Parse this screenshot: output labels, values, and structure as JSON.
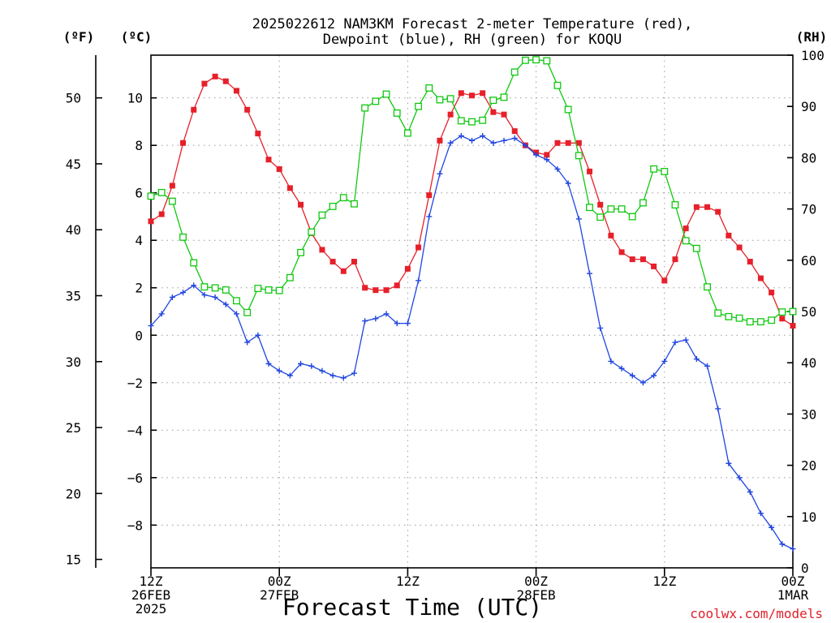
{
  "title_line1": "2025022612 NAM3KM Forecast 2-meter Temperature (red),",
  "title_line2": "Dewpoint (blue), RH (green) for KOQU",
  "unit_f": "(ºF)",
  "unit_c": "(ºC)",
  "unit_rh": "(RH)",
  "x_axis_label": "Forecast Time (UTC)",
  "credit": "coolwx.com/models",
  "x_ticks": [
    {
      "hour": 0,
      "lines": [
        "12Z",
        "26FEB",
        "2025"
      ]
    },
    {
      "hour": 12,
      "lines": [
        "00Z",
        "27FEB"
      ]
    },
    {
      "hour": 24,
      "lines": [
        "12Z"
      ]
    },
    {
      "hour": 36,
      "lines": [
        "00Z",
        "28FEB"
      ]
    },
    {
      "hour": 48,
      "lines": [
        "12Z"
      ]
    },
    {
      "hour": 60,
      "lines": [
        "00Z",
        "1MAR"
      ]
    }
  ],
  "chart_data": {
    "type": "line",
    "x_unit": "forecast hour from 2025-02-26 12Z",
    "xlim": [
      0,
      60
    ],
    "y_left_c_lim": [
      -9.8,
      11.8
    ],
    "y_left_c_ticks": [
      -8,
      -6,
      -4,
      -2,
      0,
      2,
      4,
      6,
      8,
      10
    ],
    "y_left_f_ticks": [
      15,
      20,
      25,
      30,
      35,
      40,
      45,
      50
    ],
    "y_right_rh_lim": [
      0,
      100
    ],
    "y_right_rh_ticks": [
      0,
      10,
      20,
      30,
      40,
      50,
      60,
      70,
      80,
      90,
      100
    ],
    "grid": true,
    "x": [
      0,
      1,
      2,
      3,
      4,
      5,
      6,
      7,
      8,
      9,
      10,
      11,
      12,
      13,
      14,
      15,
      16,
      17,
      18,
      19,
      20,
      21,
      22,
      23,
      24,
      25,
      26,
      27,
      28,
      29,
      30,
      31,
      32,
      33,
      34,
      35,
      36,
      37,
      38,
      39,
      40,
      41,
      42,
      43,
      44,
      45,
      46,
      47,
      48,
      49,
      50,
      51,
      52,
      53,
      54,
      55,
      56,
      57,
      58,
      59,
      60
    ],
    "series": [
      {
        "name": "Temperature",
        "axis": "C",
        "color": "#e6202a",
        "marker": "filled-square",
        "values": [
          4.8,
          5.1,
          6.3,
          8.1,
          9.5,
          10.6,
          10.9,
          10.7,
          10.3,
          9.5,
          8.5,
          7.4,
          7.0,
          6.2,
          5.5,
          4.3,
          3.6,
          3.1,
          2.7,
          3.1,
          2.0,
          1.9,
          1.9,
          2.1,
          2.8,
          3.7,
          5.9,
          8.2,
          9.3,
          10.2,
          10.1,
          10.2,
          9.4,
          9.3,
          8.6,
          8.0,
          7.7,
          7.6,
          8.1,
          8.1,
          8.1,
          6.9,
          5.5,
          4.2,
          3.5,
          3.2,
          3.2,
          2.9,
          2.3,
          3.2,
          4.5,
          5.4,
          5.4,
          5.2,
          4.2,
          3.7,
          3.1,
          2.4,
          1.8,
          0.7,
          0.4
        ]
      },
      {
        "name": "Dewpoint",
        "axis": "C",
        "color": "#2046e0",
        "marker": "plus",
        "values": [
          0.4,
          0.9,
          1.6,
          1.8,
          2.1,
          1.7,
          1.6,
          1.3,
          0.9,
          -0.3,
          0.0,
          -1.2,
          -1.5,
          -1.7,
          -1.2,
          -1.3,
          -1.5,
          -1.7,
          -1.8,
          -1.6,
          0.6,
          0.7,
          0.9,
          0.5,
          0.5,
          2.3,
          5.0,
          6.8,
          8.1,
          8.4,
          8.2,
          8.4,
          8.1,
          8.2,
          8.3,
          8.0,
          7.6,
          7.4,
          7.0,
          6.4,
          4.9,
          2.6,
          0.3,
          -1.1,
          -1.4,
          -1.7,
          -2.0,
          -1.7,
          -1.1,
          -0.3,
          -0.2,
          -1.0,
          -1.3,
          -3.1,
          -5.4,
          -6.0,
          -6.6,
          -7.5,
          -8.1,
          -8.8,
          -9.0
        ]
      },
      {
        "name": "RH",
        "axis": "RH",
        "color": "#10c810",
        "marker": "open-square",
        "values": [
          72.5,
          73.2,
          71.5,
          64.5,
          59.5,
          54.8,
          54.6,
          54.2,
          52.1,
          49.8,
          54.5,
          54.2,
          54.1,
          56.6,
          61.5,
          65.5,
          68.8,
          70.5,
          72.2,
          71.0,
          89.7,
          91.0,
          92.4,
          88.7,
          84.8,
          90.0,
          93.6,
          91.3,
          91.5,
          87.2,
          87.0,
          87.3,
          91.2,
          91.8,
          96.7,
          99.0,
          99.1,
          98.9,
          94.1,
          89.4,
          80.4,
          70.3,
          68.4,
          70.0,
          70.0,
          68.5,
          71.2,
          77.8,
          77.3,
          70.8,
          63.8,
          62.3,
          54.8,
          49.7,
          49.0,
          48.7,
          48.0,
          48.0,
          48.3,
          49.9,
          50.0
        ]
      }
    ]
  }
}
